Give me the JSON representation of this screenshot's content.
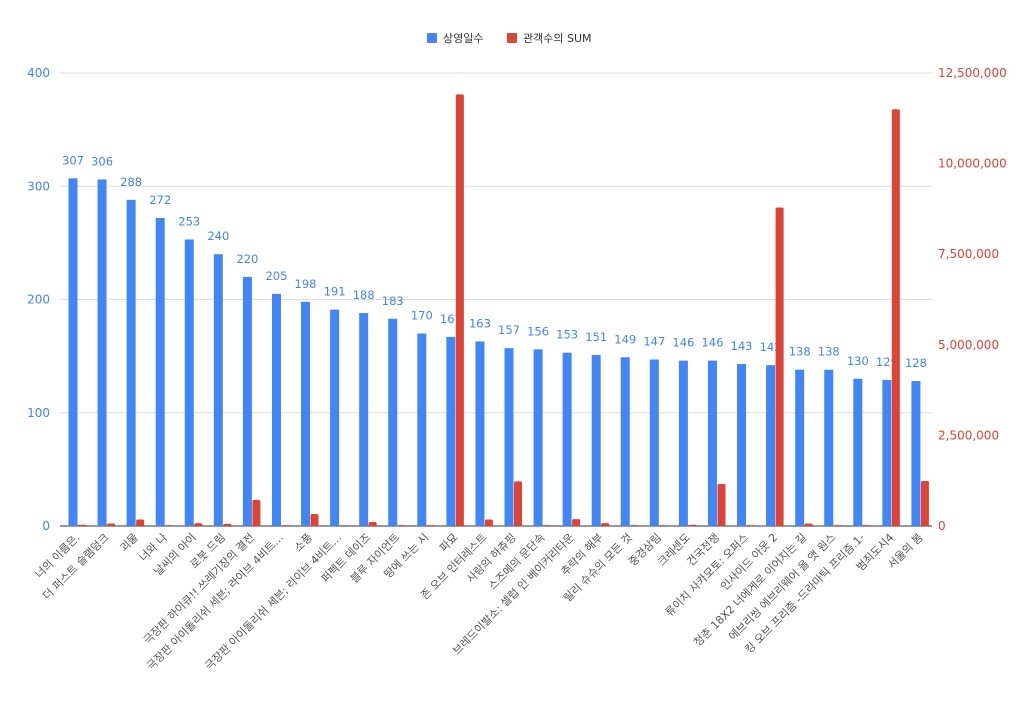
{
  "chart_data": {
    "type": "bar",
    "title": "",
    "xlabel": "",
    "ylabel": "",
    "legend_position": "top",
    "grid": true,
    "categories": [
      "너의 이름은.",
      "더 퍼스트 슬램덩크",
      "괴물",
      "너와 나",
      "날씨의 아이",
      "로봇 드림",
      "극장판 하이큐!! 쓰레기장의 결전",
      "극장판 아이돌리쉬 세븐; 라이브 4비트…",
      "소풍",
      "극장판 아이돌리쉬 세븐; 라이브 4비트…",
      "퍼펙트 데이즈",
      "블루 자이언트",
      "땅에 쓰는 시",
      "파묘",
      "존 오브 인터레스트",
      "사랑의 하츄핑",
      "스즈메의 문단속",
      "브레드이발소: 셀럽 인 베이커리타운",
      "추락의 해부",
      "릴리 슈슈의 모든 것",
      "중경삼림",
      "크레센도",
      "건국전쟁",
      "류이치 사카모토: 오퍼스",
      "인사이드 아웃 2",
      "청춘 18X2 너에게로 이어지는 길",
      "에브리씽 에브리웨어 올 앳 원스",
      "킹 오브 프리즘 -드라마틱 프리즘.1-",
      "범죄도시4",
      "서울의 봄"
    ],
    "series": [
      {
        "name": "상영일수",
        "axis": "left",
        "color": "#4285f4",
        "values": [
          307,
          306,
          288,
          272,
          253,
          240,
          220,
          205,
          198,
          191,
          188,
          183,
          170,
          167,
          163,
          157,
          156,
          153,
          151,
          149,
          147,
          146,
          146,
          143,
          142,
          138,
          138,
          130,
          129,
          128
        ]
      },
      {
        "name": "관객수의 SUM",
        "axis": "right",
        "color": "#db4437",
        "values": [
          30000,
          70000,
          180000,
          10000,
          80000,
          60000,
          720000,
          5000,
          330000,
          5000,
          110000,
          10000,
          10000,
          11910000,
          180000,
          1230000,
          5000,
          190000,
          80000,
          0,
          10000,
          30000,
          1160000,
          10000,
          8790000,
          70000,
          0,
          10000,
          11500000,
          1240000
        ]
      }
    ],
    "left_axis": {
      "range": [
        0,
        400
      ],
      "ticks": [
        "0",
        "100",
        "200",
        "300",
        "400"
      ],
      "color": "#4285f4"
    },
    "right_axis": {
      "range": [
        0,
        12500000
      ],
      "ticks": [
        "0",
        "2,500,000",
        "5,000,000",
        "7,500,000",
        "10,000,000",
        "12,500,000"
      ],
      "color": "#db4437"
    }
  }
}
